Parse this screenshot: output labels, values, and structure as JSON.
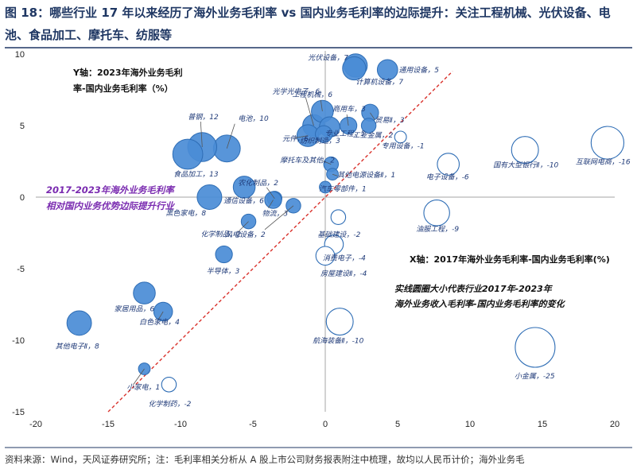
{
  "header": {
    "title": "图 18：哪些行业 17 年以来经历了海外业务毛利率 vs 国内业务毛利率的边际提升：关注工程机械、光伏设备、电池、食品加工、摩托车、纺服等"
  },
  "footer": {
    "source": "资料来源：Wind，天风证券研究所；注：毛利率相关分析从 A 股上市公司财务报表附注中梳理，故均以人民币计价；海外业务毛"
  },
  "chart_data": {
    "type": "scatter",
    "title": "",
    "xlabel": "X轴：2017年海外业务毛利率-国内业务毛利率(%)",
    "ylabel_lines": [
      "Y轴：2023年海外业务毛利",
      "率-国内业务毛利率（%）"
    ],
    "xlim": [
      -20,
      20
    ],
    "ylim": [
      -15,
      10
    ],
    "x_ticks": [
      "-20",
      "-15",
      "-10",
      "-5",
      "0",
      "5",
      "10",
      "15",
      "20"
    ],
    "y_ticks": [
      "10",
      "5",
      "0",
      "-5",
      "-10",
      "-15"
    ],
    "grid": false,
    "diagonal_label_lines": [
      "2017-2023年海外业务毛利率",
      "相对国内业务优势边际提升行业"
    ],
    "bubble_note_lines": [
      "实线圆圈大小代表行业2017年-2023年",
      "海外业务收入毛利率-国内业务毛利率的变化"
    ],
    "colors": {
      "positive": "#4a8cd6",
      "negative": "#ffffff",
      "outline": "#2e6db5",
      "diagonal": "#d9312b"
    },
    "points": [
      {
        "label": "光伏设备，7",
        "x": 2.1,
        "y": 9.2,
        "size": 7
      },
      {
        "label": "通用设备，5",
        "x": 4.3,
        "y": 8.9,
        "size": 5
      },
      {
        "label": "计算机设备，7",
        "x": 2.0,
        "y": 9.0,
        "size": 7
      },
      {
        "label": "光学光电子，6",
        "x": -0.8,
        "y": 5.0,
        "size": 6
      },
      {
        "label": "工程机械，6",
        "x": -0.2,
        "y": 6.0,
        "size": 6
      },
      {
        "label": "商用车，3",
        "x": 1.6,
        "y": 5.0,
        "size": 3
      },
      {
        "label": "贸易Ⅱ，3",
        "x": 3.1,
        "y": 5.9,
        "size": 3
      },
      {
        "label": "电池，10",
        "x": -6.8,
        "y": 3.4,
        "size": 10
      },
      {
        "label": "普钢，12",
        "x": -8.5,
        "y": 3.5,
        "size": 12
      },
      {
        "label": "元件，6",
        "x": -1.2,
        "y": 4.3,
        "size": 6
      },
      {
        "label": "专业工程，5",
        "x": 0.3,
        "y": 4.9,
        "size": 5
      },
      {
        "label": "工业金属，2",
        "x": 3.0,
        "y": 5.0,
        "size": 2
      },
      {
        "label": "纺织制造，3",
        "x": -0.1,
        "y": 4.4,
        "size": 3
      },
      {
        "label": "专用设备，-1",
        "x": 5.2,
        "y": 4.2,
        "size": -1
      },
      {
        "label": "食品加工，13",
        "x": -9.5,
        "y": 3.0,
        "size": 13
      },
      {
        "label": "摩托车及其他，2",
        "x": 0.4,
        "y": 2.3,
        "size": 2
      },
      {
        "label": "电子设备，-6",
        "x": 8.5,
        "y": 2.3,
        "size": -6
      },
      {
        "label": "国有大型银行Ⅱ，-10",
        "x": 13.8,
        "y": 3.3,
        "size": -10
      },
      {
        "label": "互联网电商，-16",
        "x": 19.5,
        "y": 3.8,
        "size": -16
      },
      {
        "label": "其他电源设备Ⅱ，1",
        "x": 0.5,
        "y": 1.6,
        "size": 1
      },
      {
        "label": "通信设备，6",
        "x": -5.6,
        "y": 0.7,
        "size": 6
      },
      {
        "label": "农化制品，2",
        "x": -3.5,
        "y": -0.1,
        "size": 2
      },
      {
        "label": "汽车零部件，1",
        "x": 0.0,
        "y": 0.7,
        "size": 1
      },
      {
        "label": "黑色家电，8",
        "x": -8.0,
        "y": 0.0,
        "size": 8
      },
      {
        "label": "物流，3",
        "x": -3.6,
        "y": -0.2,
        "size": 3
      },
      {
        "label": "化学制品，2",
        "x": -5.3,
        "y": -1.7,
        "size": 2
      },
      {
        "label": "风电设备，2",
        "x": -2.2,
        "y": -0.6,
        "size": 2
      },
      {
        "label": "基础建设，-2",
        "x": 0.9,
        "y": -1.4,
        "size": -2
      },
      {
        "label": "油服工程，-9",
        "x": 7.7,
        "y": -1.1,
        "size": -9
      },
      {
        "label": "消费电子，-4",
        "x": 0.6,
        "y": -3.3,
        "size": -4
      },
      {
        "label": "半导体，3",
        "x": -7.0,
        "y": -4.0,
        "size": 3
      },
      {
        "label": "房屋建设Ⅱ，-4",
        "x": 0.0,
        "y": -4.1,
        "size": -4
      },
      {
        "label": "家居用品，6",
        "x": -12.5,
        "y": -6.7,
        "size": 6
      },
      {
        "label": "白色家电，4",
        "x": -11.2,
        "y": -8.0,
        "size": 4
      },
      {
        "label": "其他电子Ⅱ，8",
        "x": -17.0,
        "y": -8.8,
        "size": 8
      },
      {
        "label": "航海装备Ⅱ，-10",
        "x": 1.0,
        "y": -8.7,
        "size": -10
      },
      {
        "label": "小金属，-25",
        "x": 14.5,
        "y": -10.5,
        "size": -25
      },
      {
        "label": "小家电，1",
        "x": -12.5,
        "y": -12.0,
        "size": 1
      },
      {
        "label": "化学制药，-2",
        "x": -10.8,
        "y": -13.1,
        "size": -2
      }
    ]
  }
}
